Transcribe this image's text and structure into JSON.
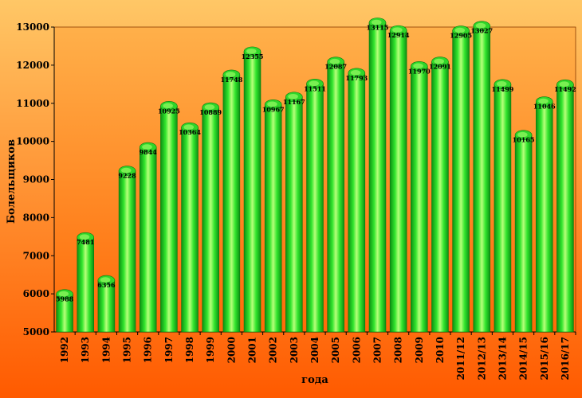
{
  "chart_data": {
    "type": "bar",
    "title": "",
    "xlabel": "года",
    "ylabel": "Болельщиков",
    "ylim": [
      5000,
      13000
    ],
    "yticks": [
      5000,
      6000,
      7000,
      8000,
      9000,
      10000,
      11000,
      12000,
      13000
    ],
    "grid": false,
    "categories": [
      "1992",
      "1993",
      "1994",
      "1995",
      "1996",
      "1997",
      "1998",
      "1999",
      "2000",
      "2001",
      "2002",
      "2003",
      "2004",
      "2005",
      "2006",
      "2007",
      "2008",
      "2009",
      "2010",
      "2011/12",
      "2012/13",
      "2013/14",
      "2014/15",
      "2015/16",
      "2016/17"
    ],
    "values": [
      5988,
      7481,
      6356,
      9228,
      9844,
      10925,
      10364,
      10889,
      11748,
      12355,
      10967,
      11167,
      11511,
      12087,
      11793,
      13115,
      12914,
      11970,
      12091,
      12905,
      13027,
      11499,
      10165,
      11046,
      11492
    ],
    "colors": {
      "bar_light": "#b8ff7a",
      "bar_mid": "#33e62e",
      "bar_dark": "#0c8f12",
      "bar_outline": "#0a7a10",
      "plot_area": "#ff7a14"
    }
  }
}
